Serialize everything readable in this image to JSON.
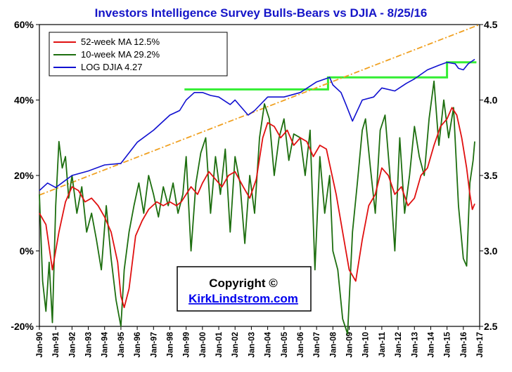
{
  "chart_data": {
    "type": "line",
    "title": "Investors Intelligence Survey Bulls-Bears vs DJIA - 8/25/16",
    "y_left_ticks": [
      "60%",
      "40%",
      "20%",
      "0%",
      "-20%"
    ],
    "y_left_range": [
      -20,
      60
    ],
    "y_right_ticks": [
      "4.5",
      "4.0",
      "3.5",
      "3.0",
      "2.5"
    ],
    "y_right_range": [
      2.5,
      4.5
    ],
    "x_range": [
      1990.0,
      2017.0
    ],
    "x_ticks": [
      "Jan-90",
      "Jan-91",
      "Jan-92",
      "Jan-93",
      "Jan-94",
      "Jan-95",
      "Jan-96",
      "Jan-97",
      "Jan-98",
      "Jan-99",
      "Jan-00",
      "Jan-01",
      "Jan-02",
      "Jan-03",
      "Jan-04",
      "Jan-05",
      "Jan-06",
      "Jan-07",
      "Jan-08",
      "Jan-09",
      "Jan-10",
      "Jan-11",
      "Jan-12",
      "Jan-13",
      "Jan-14",
      "Jan-15",
      "Jan-16",
      "Jan-17"
    ],
    "grid": false,
    "legend_position": "top-left",
    "annotation": {
      "copyright": "Copyright ©",
      "link": "KirkLindstrom.com"
    },
    "series": [
      {
        "name": "52-week MA 12.5%",
        "axis": "left",
        "color": "#e01010",
        "points": [
          [
            1990.0,
            10
          ],
          [
            1990.4,
            7
          ],
          [
            1990.8,
            -5
          ],
          [
            1991.2,
            5
          ],
          [
            1991.6,
            13
          ],
          [
            1992.0,
            17
          ],
          [
            1992.4,
            16
          ],
          [
            1992.8,
            13
          ],
          [
            1993.2,
            14
          ],
          [
            1993.6,
            12
          ],
          [
            1994.0,
            9
          ],
          [
            1994.4,
            5
          ],
          [
            1994.8,
            -3
          ],
          [
            1995.0,
            -12
          ],
          [
            1995.2,
            -15
          ],
          [
            1995.5,
            -10
          ],
          [
            1995.9,
            4
          ],
          [
            1996.3,
            8
          ],
          [
            1996.7,
            11
          ],
          [
            1997.2,
            13
          ],
          [
            1997.6,
            12
          ],
          [
            1998.0,
            13
          ],
          [
            1998.4,
            12
          ],
          [
            1998.7,
            13
          ],
          [
            1999.0,
            15
          ],
          [
            1999.3,
            17
          ],
          [
            1999.7,
            15
          ],
          [
            2000.0,
            18
          ],
          [
            2000.4,
            21
          ],
          [
            2000.8,
            19
          ],
          [
            2001.2,
            17
          ],
          [
            2001.6,
            20
          ],
          [
            2002.0,
            21
          ],
          [
            2002.5,
            17
          ],
          [
            2002.9,
            14
          ],
          [
            2003.3,
            19
          ],
          [
            2003.7,
            30
          ],
          [
            2004.0,
            34
          ],
          [
            2004.4,
            33
          ],
          [
            2004.8,
            30
          ],
          [
            2005.2,
            32
          ],
          [
            2005.6,
            28
          ],
          [
            2006.0,
            30
          ],
          [
            2006.4,
            29
          ],
          [
            2006.8,
            25
          ],
          [
            2007.2,
            28
          ],
          [
            2007.6,
            27
          ],
          [
            2007.8,
            23
          ],
          [
            2008.2,
            15
          ],
          [
            2008.6,
            5
          ],
          [
            2009.0,
            -5
          ],
          [
            2009.4,
            -8
          ],
          [
            2009.8,
            3
          ],
          [
            2010.2,
            12
          ],
          [
            2010.6,
            15
          ],
          [
            2011.0,
            22
          ],
          [
            2011.4,
            20
          ],
          [
            2011.8,
            15
          ],
          [
            2012.2,
            17
          ],
          [
            2012.6,
            12
          ],
          [
            2013.0,
            14
          ],
          [
            2013.4,
            20
          ],
          [
            2013.8,
            22
          ],
          [
            2014.2,
            28
          ],
          [
            2014.6,
            33
          ],
          [
            2015.0,
            35
          ],
          [
            2015.3,
            38
          ],
          [
            2015.6,
            36
          ],
          [
            2015.9,
            30
          ],
          [
            2016.2,
            22
          ],
          [
            2016.4,
            15
          ],
          [
            2016.55,
            11
          ],
          [
            2016.7,
            12.5
          ]
        ]
      },
      {
        "name": "10-week MA 29.2%",
        "axis": "left",
        "color": "#1d6e0f",
        "points": [
          [
            1990.0,
            15
          ],
          [
            1990.2,
            -8
          ],
          [
            1990.4,
            -16
          ],
          [
            1990.6,
            -3
          ],
          [
            1990.8,
            -19
          ],
          [
            1991.0,
            12
          ],
          [
            1991.2,
            29
          ],
          [
            1991.4,
            22
          ],
          [
            1991.6,
            25
          ],
          [
            1991.8,
            14
          ],
          [
            1992.0,
            20
          ],
          [
            1992.3,
            10
          ],
          [
            1992.6,
            17
          ],
          [
            1992.9,
            5
          ],
          [
            1993.2,
            10
          ],
          [
            1993.5,
            3
          ],
          [
            1993.8,
            -5
          ],
          [
            1994.1,
            12
          ],
          [
            1994.4,
            -2
          ],
          [
            1994.7,
            -13
          ],
          [
            1995.0,
            -20
          ],
          [
            1995.2,
            -5
          ],
          [
            1995.5,
            5
          ],
          [
            1995.8,
            12
          ],
          [
            1996.1,
            18
          ],
          [
            1996.4,
            10
          ],
          [
            1996.7,
            20
          ],
          [
            1997.0,
            15
          ],
          [
            1997.3,
            9
          ],
          [
            1997.6,
            17
          ],
          [
            1997.9,
            12
          ],
          [
            1998.2,
            18
          ],
          [
            1998.5,
            10
          ],
          [
            1998.8,
            15
          ],
          [
            1999.0,
            25
          ],
          [
            1999.3,
            0
          ],
          [
            1999.6,
            18
          ],
          [
            1999.9,
            26
          ],
          [
            2000.2,
            30
          ],
          [
            2000.5,
            10
          ],
          [
            2000.8,
            25
          ],
          [
            2001.1,
            15
          ],
          [
            2001.4,
            27
          ],
          [
            2001.7,
            5
          ],
          [
            2002.0,
            25
          ],
          [
            2002.3,
            18
          ],
          [
            2002.6,
            2
          ],
          [
            2002.9,
            20
          ],
          [
            2003.2,
            10
          ],
          [
            2003.5,
            30
          ],
          [
            2003.8,
            39
          ],
          [
            2004.1,
            35
          ],
          [
            2004.4,
            20
          ],
          [
            2004.7,
            30
          ],
          [
            2005.0,
            35
          ],
          [
            2005.3,
            24
          ],
          [
            2005.6,
            31
          ],
          [
            2006.0,
            30
          ],
          [
            2006.3,
            20
          ],
          [
            2006.6,
            32
          ],
          [
            2006.9,
            -5
          ],
          [
            2007.2,
            25
          ],
          [
            2007.5,
            10
          ],
          [
            2007.8,
            20
          ],
          [
            2008.0,
            0
          ],
          [
            2008.3,
            -5
          ],
          [
            2008.6,
            -18
          ],
          [
            2008.9,
            -22
          ],
          [
            2009.2,
            5
          ],
          [
            2009.5,
            18
          ],
          [
            2009.8,
            32
          ],
          [
            2010.0,
            35
          ],
          [
            2010.3,
            22
          ],
          [
            2010.6,
            10
          ],
          [
            2010.9,
            32
          ],
          [
            2011.2,
            36
          ],
          [
            2011.5,
            20
          ],
          [
            2011.8,
            0
          ],
          [
            2012.1,
            30
          ],
          [
            2012.4,
            10
          ],
          [
            2012.7,
            20
          ],
          [
            2013.0,
            33
          ],
          [
            2013.3,
            25
          ],
          [
            2013.6,
            20
          ],
          [
            2013.9,
            35
          ],
          [
            2014.2,
            45
          ],
          [
            2014.5,
            28
          ],
          [
            2014.8,
            40
          ],
          [
            2015.1,
            30
          ],
          [
            2015.4,
            38
          ],
          [
            2015.7,
            12
          ],
          [
            2016.0,
            -2
          ],
          [
            2016.2,
            -4
          ],
          [
            2016.4,
            18
          ],
          [
            2016.6,
            24
          ],
          [
            2016.7,
            29
          ]
        ]
      },
      {
        "name": "LOG DJIA 4.27",
        "axis": "right",
        "color": "#1010d0",
        "points": [
          [
            1990.0,
            3.4
          ],
          [
            1990.5,
            3.45
          ],
          [
            1991.0,
            3.42
          ],
          [
            1992.0,
            3.5
          ],
          [
            1993.0,
            3.53
          ],
          [
            1994.0,
            3.57
          ],
          [
            1995.0,
            3.58
          ],
          [
            1996.0,
            3.72
          ],
          [
            1997.0,
            3.8
          ],
          [
            1998.0,
            3.9
          ],
          [
            1998.6,
            3.93
          ],
          [
            1999.0,
            4.0
          ],
          [
            1999.5,
            4.05
          ],
          [
            2000.0,
            4.05
          ],
          [
            2000.5,
            4.03
          ],
          [
            2001.0,
            4.02
          ],
          [
            2001.7,
            3.97
          ],
          [
            2002.0,
            4.0
          ],
          [
            2002.8,
            3.9
          ],
          [
            2003.2,
            3.93
          ],
          [
            2004.0,
            4.02
          ],
          [
            2005.0,
            4.02
          ],
          [
            2006.0,
            4.05
          ],
          [
            2007.0,
            4.12
          ],
          [
            2007.8,
            4.15
          ],
          [
            2008.0,
            4.1
          ],
          [
            2008.5,
            4.05
          ],
          [
            2008.8,
            3.97
          ],
          [
            2009.2,
            3.86
          ],
          [
            2009.8,
            4.0
          ],
          [
            2010.5,
            4.02
          ],
          [
            2011.0,
            4.08
          ],
          [
            2011.8,
            4.06
          ],
          [
            2012.5,
            4.11
          ],
          [
            2013.0,
            4.14
          ],
          [
            2013.8,
            4.2
          ],
          [
            2014.5,
            4.23
          ],
          [
            2015.0,
            4.25
          ],
          [
            2015.5,
            4.24
          ],
          [
            2015.7,
            4.21
          ],
          [
            2016.0,
            4.2
          ],
          [
            2016.3,
            4.24
          ],
          [
            2016.7,
            4.27
          ]
        ]
      }
    ],
    "extras": [
      {
        "kind": "step",
        "color": "#33ee33",
        "axis": "right",
        "points": [
          [
            1998.9,
            4.07
          ],
          [
            2007.7,
            4.07
          ],
          [
            2007.7,
            4.15
          ],
          [
            2015.0,
            4.15
          ],
          [
            2015.0,
            4.25
          ],
          [
            2016.8,
            4.25
          ]
        ]
      },
      {
        "kind": "trend",
        "color": "#f0a020",
        "axis": "right",
        "points": [
          [
            1990.0,
            3.37
          ],
          [
            2017.0,
            4.5
          ]
        ]
      }
    ]
  }
}
